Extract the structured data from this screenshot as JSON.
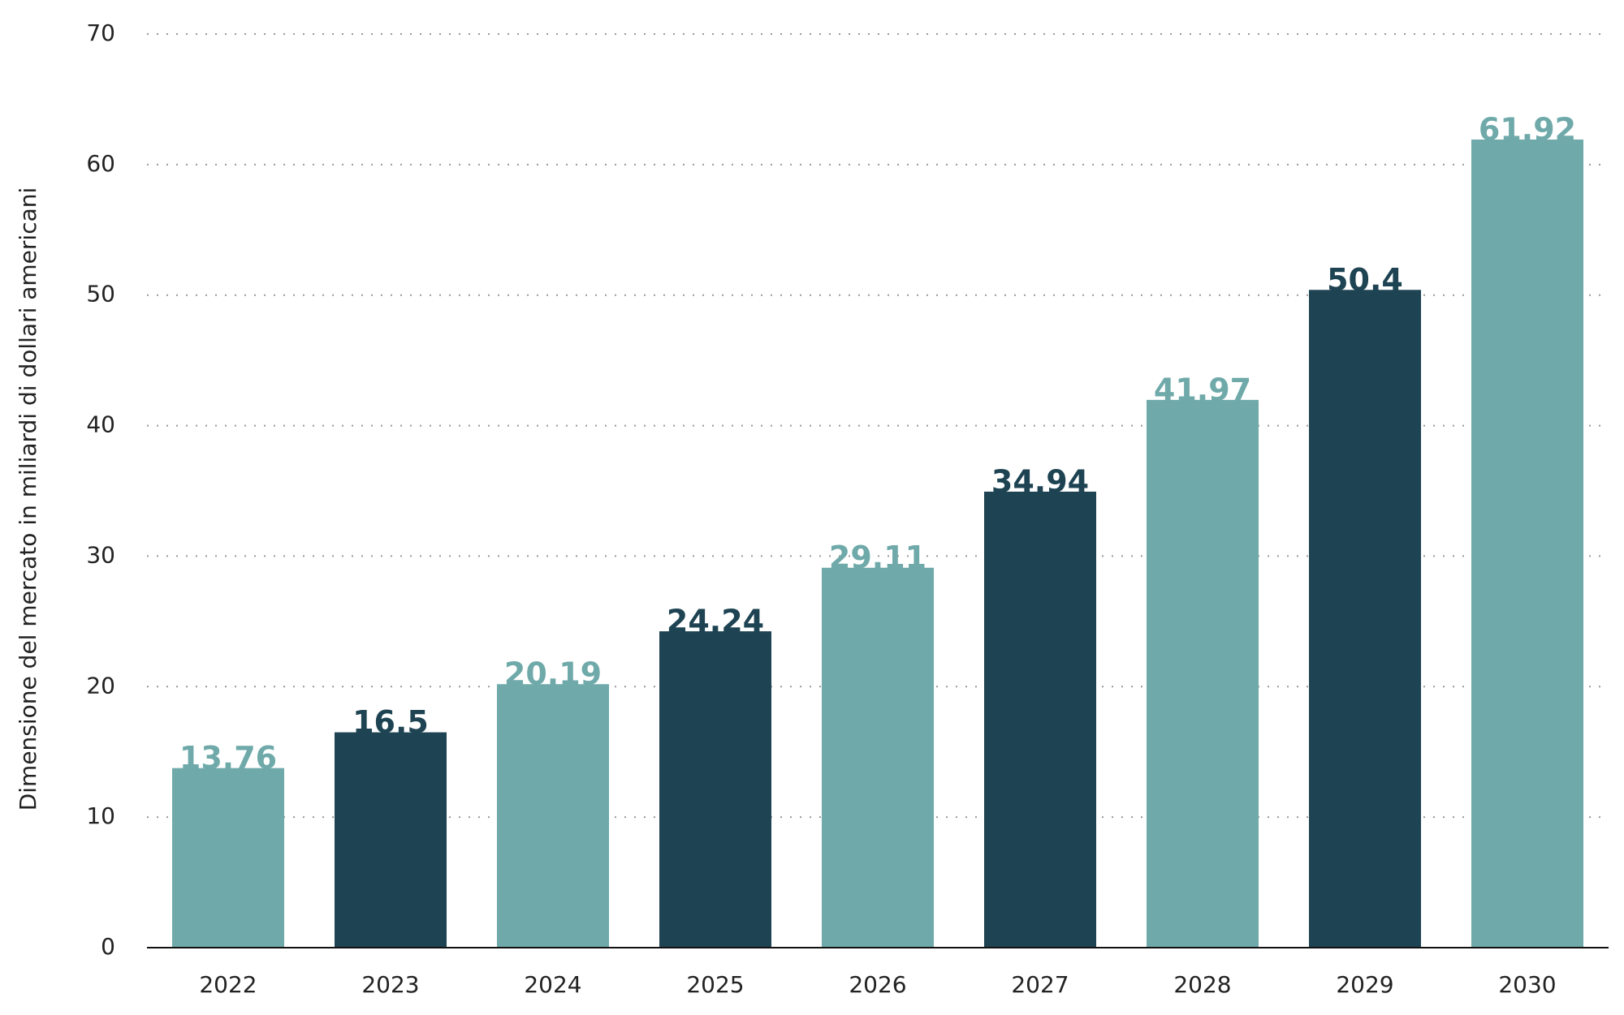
{
  "chart_data": {
    "type": "bar",
    "y_label": "Dimensione del mercato in miliardi di dollari americani",
    "categories": [
      "2022",
      "2023",
      "2024",
      "2025",
      "2026",
      "2027",
      "2028",
      "2029",
      "2030"
    ],
    "values": [
      13.76,
      16.5,
      20.19,
      24.24,
      29.11,
      34.94,
      41.97,
      50.4,
      61.92
    ],
    "colors": [
      "#6fa9a9",
      "#1e4352",
      "#6fa9a9",
      "#1e4352",
      "#6fa9a9",
      "#1e4352",
      "#6fa9a9",
      "#1e4352",
      "#6fa9a9"
    ],
    "ylim": [
      0,
      70
    ],
    "yticks": [
      0,
      10,
      20,
      30,
      40,
      50,
      60,
      70
    ],
    "grid": true
  }
}
